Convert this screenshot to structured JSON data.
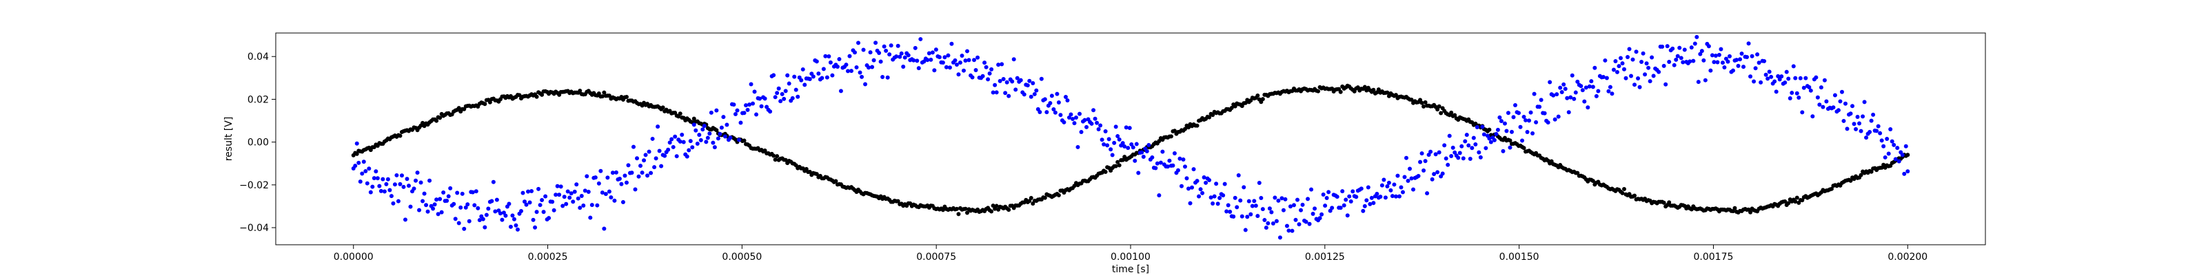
{
  "chart_data": {
    "type": "scatter",
    "xlabel": "time [s]",
    "ylabel": "result [V]",
    "xlim": [
      -0.0001,
      0.0021
    ],
    "ylim": [
      -0.048,
      0.051
    ],
    "x_ticks": [
      {
        "value": 0.0,
        "label": "0.00000"
      },
      {
        "value": 0.00025,
        "label": "0.00025"
      },
      {
        "value": 0.0005,
        "label": "0.00050"
      },
      {
        "value": 0.00075,
        "label": "0.00075"
      },
      {
        "value": 0.001,
        "label": "0.00100"
      },
      {
        "value": 0.00125,
        "label": "0.00125"
      },
      {
        "value": 0.0015,
        "label": "0.00150"
      },
      {
        "value": 0.00175,
        "label": "0.00175"
      },
      {
        "value": 0.002,
        "label": "0.00200"
      }
    ],
    "y_ticks": [
      {
        "value": -0.04,
        "label": "−0.04"
      },
      {
        "value": -0.02,
        "label": "−0.02"
      },
      {
        "value": 0.0,
        "label": "0.00"
      },
      {
        "value": 0.02,
        "label": "0.02"
      },
      {
        "value": 0.04,
        "label": "0.04"
      }
    ],
    "grid": false,
    "series": [
      {
        "color": "#000000",
        "x": [
          0.0,
          5e-05,
          0.0001,
          0.00015,
          0.0002,
          0.00025,
          0.0003,
          0.00035,
          0.0004,
          0.00045,
          0.0005,
          0.00055,
          0.0006,
          0.00065,
          0.0007,
          0.00075,
          0.0008,
          0.00085,
          0.0009,
          0.00095,
          0.001,
          0.00105,
          0.0011,
          0.00115,
          0.0012,
          0.00125,
          0.0013,
          0.00135,
          0.0014,
          0.00145,
          0.0015,
          0.00155,
          0.0016,
          0.00165,
          0.0017,
          0.00175,
          0.0018,
          0.00185,
          0.0019,
          0.00195,
          0.002
        ],
        "y": [
          -0.006,
          0.002,
          0.01,
          0.017,
          0.021,
          0.023,
          0.023,
          0.02,
          0.015,
          0.008,
          0.0,
          -0.008,
          -0.016,
          -0.023,
          -0.028,
          -0.031,
          -0.032,
          -0.03,
          -0.025,
          -0.017,
          -0.007,
          0.003,
          0.012,
          0.019,
          0.024,
          0.025,
          0.025,
          0.021,
          0.015,
          0.007,
          -0.002,
          -0.011,
          -0.019,
          -0.026,
          -0.03,
          -0.032,
          -0.032,
          -0.028,
          -0.022,
          -0.014,
          -0.006
        ]
      },
      {
        "color": "#0000ff",
        "x": [
          0.0,
          5e-05,
          0.0001,
          0.00015,
          0.0002,
          0.00025,
          0.0003,
          0.00035,
          0.0004,
          0.00045,
          0.0005,
          0.00055,
          0.0006,
          0.00065,
          0.0007,
          0.00075,
          0.0008,
          0.00085,
          0.0009,
          0.00095,
          0.001,
          0.00105,
          0.0011,
          0.00115,
          0.0012,
          0.00125,
          0.0013,
          0.00135,
          0.0014,
          0.00145,
          0.0015,
          0.00155,
          0.0016,
          0.00165,
          0.0017,
          0.00175,
          0.0018,
          0.00185,
          0.0019,
          0.00195,
          0.002
        ],
        "y": [
          -0.012,
          -0.02,
          -0.026,
          -0.03,
          -0.031,
          -0.029,
          -0.024,
          -0.016,
          -0.007,
          0.003,
          0.013,
          0.023,
          0.031,
          0.037,
          0.04,
          0.039,
          0.035,
          0.028,
          0.019,
          0.008,
          -0.003,
          -0.013,
          -0.022,
          -0.029,
          -0.032,
          -0.031,
          -0.027,
          -0.02,
          -0.011,
          -0.001,
          0.009,
          0.019,
          0.028,
          0.035,
          0.039,
          0.039,
          0.035,
          0.028,
          0.018,
          0.006,
          -0.008
        ],
        "spread": 0.005
      }
    ]
  }
}
